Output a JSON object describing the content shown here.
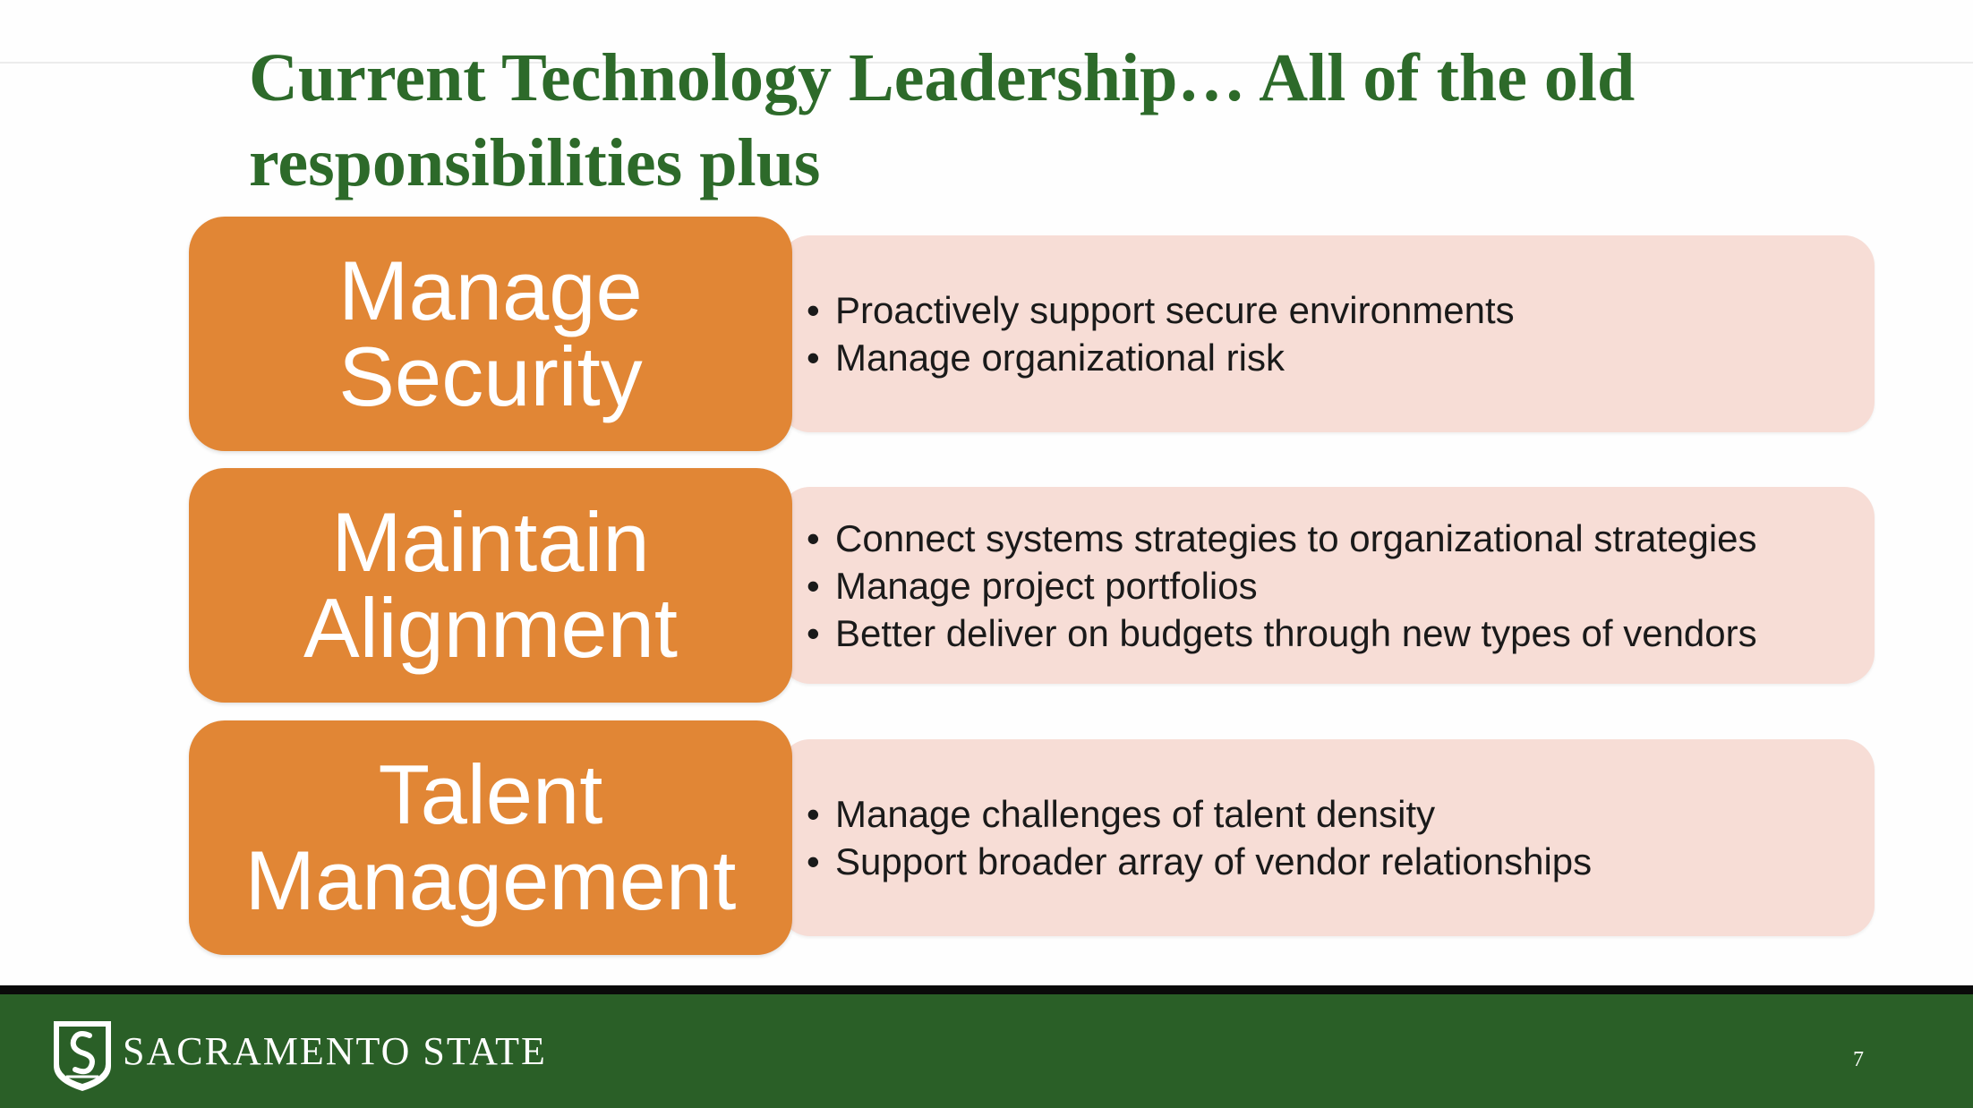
{
  "slide": {
    "title": "Current Technology Leadership… All of the old responsibilities plus",
    "rows": [
      {
        "heading_lines": [
          "Manage",
          "Security"
        ],
        "bullets": [
          "Proactively support secure environments",
          "Manage organizational risk"
        ]
      },
      {
        "heading_lines": [
          "Maintain",
          "Alignment"
        ],
        "bullets": [
          "Connect systems strategies to organizational strategies",
          "Manage project portfolios",
          "Better deliver on budgets through new types of vendors"
        ]
      },
      {
        "heading_lines": [
          "Talent",
          "Management"
        ],
        "bullets": [
          "Manage challenges of talent density",
          "Support broader array of vendor relationships"
        ]
      }
    ]
  },
  "footer": {
    "logo_icon": "sacramento-state-shield-logo",
    "brand": "SACRAMENTO STATE",
    "page_number": "7"
  },
  "colors": {
    "title_green": "#2d6a2a",
    "tile_orange": "#e18635",
    "panel_pink": "#f7ddd6",
    "footer_green": "#2a5f27"
  }
}
